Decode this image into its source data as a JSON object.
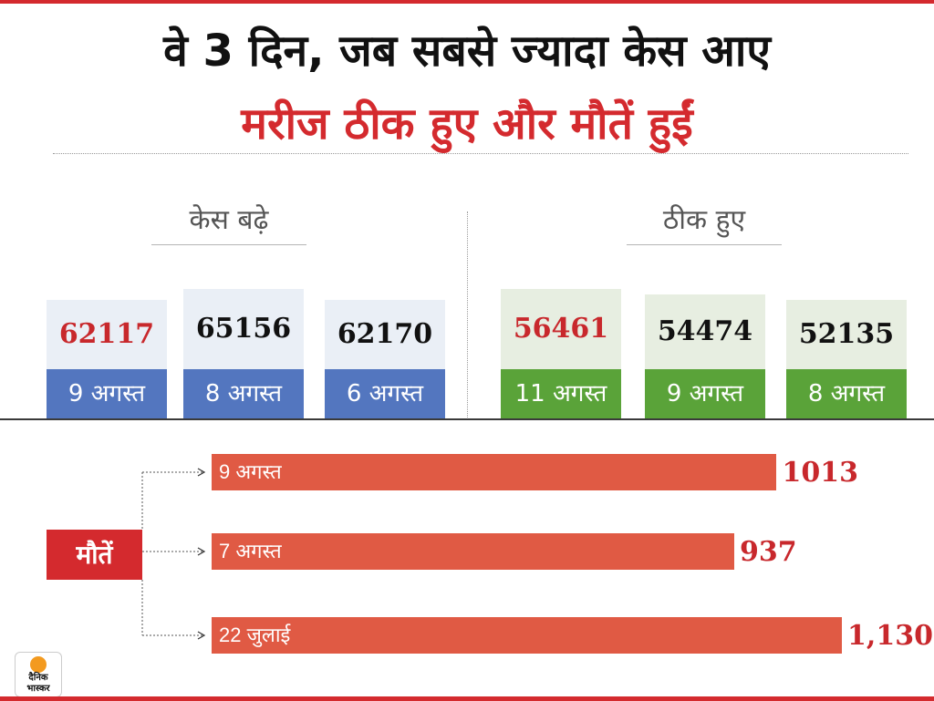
{
  "title": "वे 3 दिन, जब सबसे ज्यादा केस आए",
  "subtitle": "मरीज ठीक हुए और मौतें हुईं",
  "deaths_label": "मौतें",
  "logo": {
    "line1": "दैनिक",
    "line2": "भास्कर",
    "sun_color": "#f39a1f"
  },
  "colors": {
    "accent_red": "#d42a2e",
    "cases_blue": "#5376bf",
    "recovered_green": "#5aa339",
    "death_bar": "#e05a44"
  },
  "chart_data": [
    {
      "type": "bar",
      "title": "केस बढ़े",
      "categories": [
        "9 अगस्त",
        "8 अगस्त",
        "6 अगस्त"
      ],
      "values": [
        62117,
        65156,
        62170
      ],
      "values_text": [
        "62117",
        "65156",
        "62170"
      ],
      "highlight_index": 0,
      "grid": false
    },
    {
      "type": "bar",
      "title": "ठीक हुए",
      "categories": [
        "11 अगस्त",
        "9 अगस्त",
        "8 अगस्त"
      ],
      "values": [
        56461,
        54474,
        52135
      ],
      "values_text": [
        "56461",
        "54474",
        "52135"
      ],
      "highlight_index": 0,
      "grid": false
    },
    {
      "type": "bar",
      "orientation": "horizontal",
      "title": "मौतें",
      "categories": [
        "9 अगस्त",
        "7 अगस्त",
        "22 जुलाई"
      ],
      "values": [
        1013,
        937,
        1130
      ],
      "values_text": [
        "1013",
        "937",
        "1,130"
      ],
      "grid": false
    }
  ]
}
